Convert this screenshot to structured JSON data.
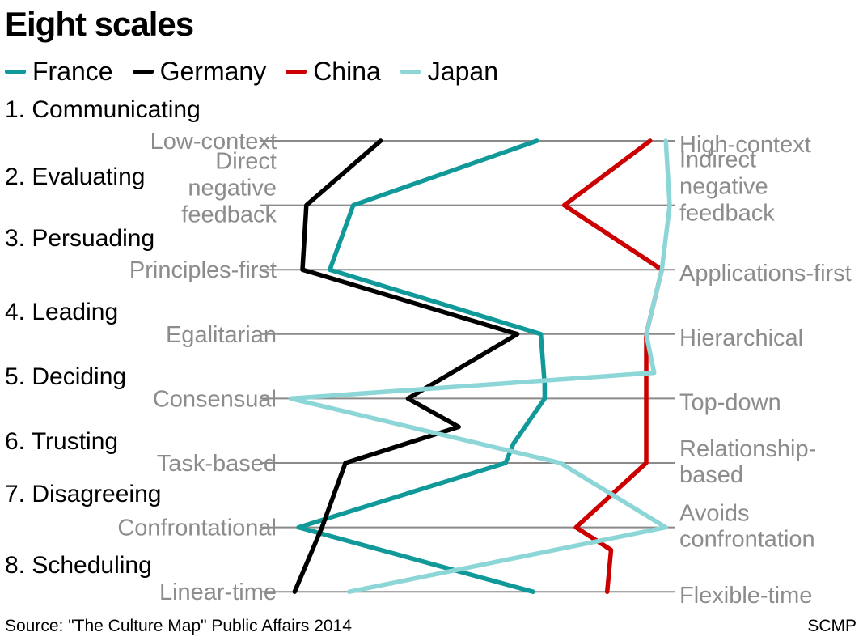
{
  "title": "Eight scales",
  "legend": [
    {
      "name": "France",
      "color": "#11999a"
    },
    {
      "name": "Germany",
      "color": "#000000"
    },
    {
      "name": "China",
      "color": "#cc0000"
    },
    {
      "name": "Japan",
      "color": "#8dd6d8"
    }
  ],
  "source": "Source: \"The Culture Map\" Public Affairs 2014",
  "brand": "SCMP",
  "chart_data": {
    "type": "line",
    "orientation": "vertical-profile",
    "scales": [
      {
        "category": "1. Communicating",
        "left": [
          "Low-context"
        ],
        "right": [
          "High-context"
        ]
      },
      {
        "category": "2. Evaluating",
        "left": [
          "Direct",
          "negative",
          "feedback"
        ],
        "right": [
          "Indirect",
          "negative",
          "feedback"
        ]
      },
      {
        "category": "3. Persuading",
        "left": [
          "Principles-first"
        ],
        "right": [
          "Applications-first"
        ]
      },
      {
        "category": "4. Leading",
        "left": [
          "Egalitarian"
        ],
        "right": [
          "Hierarchical"
        ]
      },
      {
        "category": "5. Deciding",
        "left": [
          "Consensual"
        ],
        "right": [
          "Top-down"
        ]
      },
      {
        "category": "6. Trusting",
        "left": [
          "Task-based"
        ],
        "right": [
          "Relationship-",
          "based"
        ]
      },
      {
        "category": "7. Disagreeing",
        "left": [
          "Confrontational"
        ],
        "right": [
          "Avoids",
          "confrontation"
        ]
      },
      {
        "category": "8. Scheduling",
        "left": [
          "Linear-time"
        ],
        "right": [
          "Flexible-time"
        ]
      }
    ],
    "xlim": [
      0,
      100
    ],
    "grid": true,
    "legend_position": "top-left",
    "series": [
      {
        "name": "France",
        "color": "#11999a",
        "values": [
          66,
          19,
          13,
          67,
          68,
          58,
          5,
          65
        ],
        "path_points": [
          {
            "step": 3.78,
            "value": 68
          },
          {
            "step": 4.7,
            "value": 60
          }
        ]
      },
      {
        "name": "Germany",
        "color": "#000000",
        "values": [
          26,
          7,
          6,
          61,
          33,
          17,
          11,
          4
        ],
        "path_points": [
          {
            "step": 4.44,
            "value": 46
          }
        ]
      },
      {
        "name": "China",
        "color": "#cc0000",
        "values": [
          95,
          73,
          98,
          94,
          94,
          94,
          76,
          84
        ],
        "path_points": [
          {
            "step": 3.6,
            "value": 94
          },
          {
            "step": 6.35,
            "value": 85
          }
        ]
      },
      {
        "name": "Japan",
        "color": "#8dd6d8",
        "values": [
          99,
          100,
          98,
          94,
          3,
          72,
          99,
          18
        ],
        "path_points": [
          {
            "step": 3.6,
            "value": 96
          }
        ]
      }
    ]
  }
}
